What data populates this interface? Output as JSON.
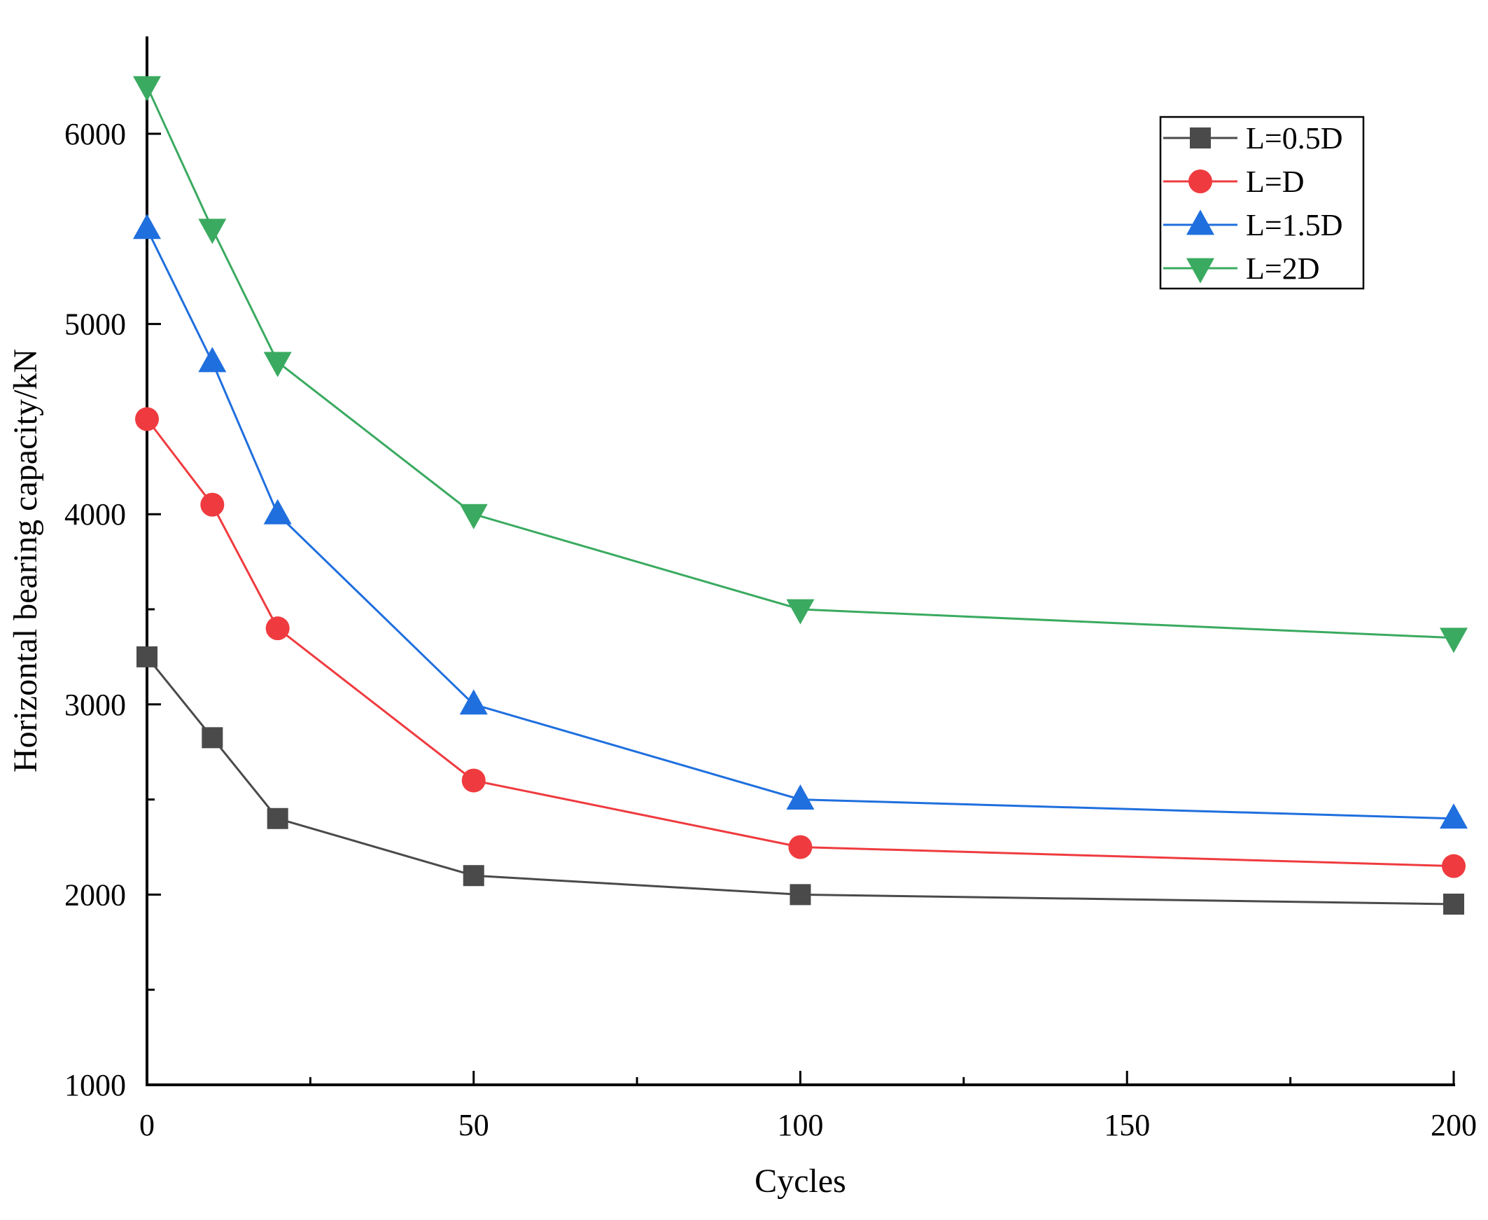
{
  "chart_data": {
    "type": "line",
    "title": "",
    "xlabel": "Cycles",
    "ylabel": "Horizontal bearing capacity/kN",
    "xlim": [
      0,
      200
    ],
    "ylim": [
      1000,
      6500
    ],
    "x_major_ticks": [
      0,
      50,
      100,
      150,
      200
    ],
    "x_tick_labels": [
      "0",
      "50",
      "100",
      "150",
      "200"
    ],
    "x_minor_ticks": [
      25,
      75,
      125,
      175
    ],
    "y_major_ticks": [
      1000,
      2000,
      3000,
      4000,
      5000,
      6000
    ],
    "y_tick_labels": [
      "1000",
      "2000",
      "3000",
      "4000",
      "5000",
      "6000"
    ],
    "y_minor_ticks": [
      1500,
      2500,
      3500,
      4500,
      5500
    ],
    "grid": false,
    "legend_position": "top-right",
    "x": [
      0,
      10,
      20,
      50,
      100,
      200
    ],
    "series": [
      {
        "name": "L=0.5D",
        "marker": "square",
        "color": "#4a4a4a",
        "values": [
          3250,
          2825,
          2400,
          2100,
          2000,
          1950
        ]
      },
      {
        "name": "L=D",
        "marker": "circle",
        "color": "#ef3b3f",
        "values": [
          4500,
          4050,
          3400,
          2600,
          2250,
          2150
        ]
      },
      {
        "name": "L=1.5D",
        "marker": "triangle-up",
        "color": "#1f6fde",
        "values": [
          5500,
          4800,
          4000,
          3000,
          2500,
          2400
        ]
      },
      {
        "name": "L=2D",
        "marker": "triangle-down",
        "color": "#3aaa60",
        "values": [
          6250,
          5500,
          4800,
          4000,
          3500,
          3350
        ]
      }
    ]
  }
}
